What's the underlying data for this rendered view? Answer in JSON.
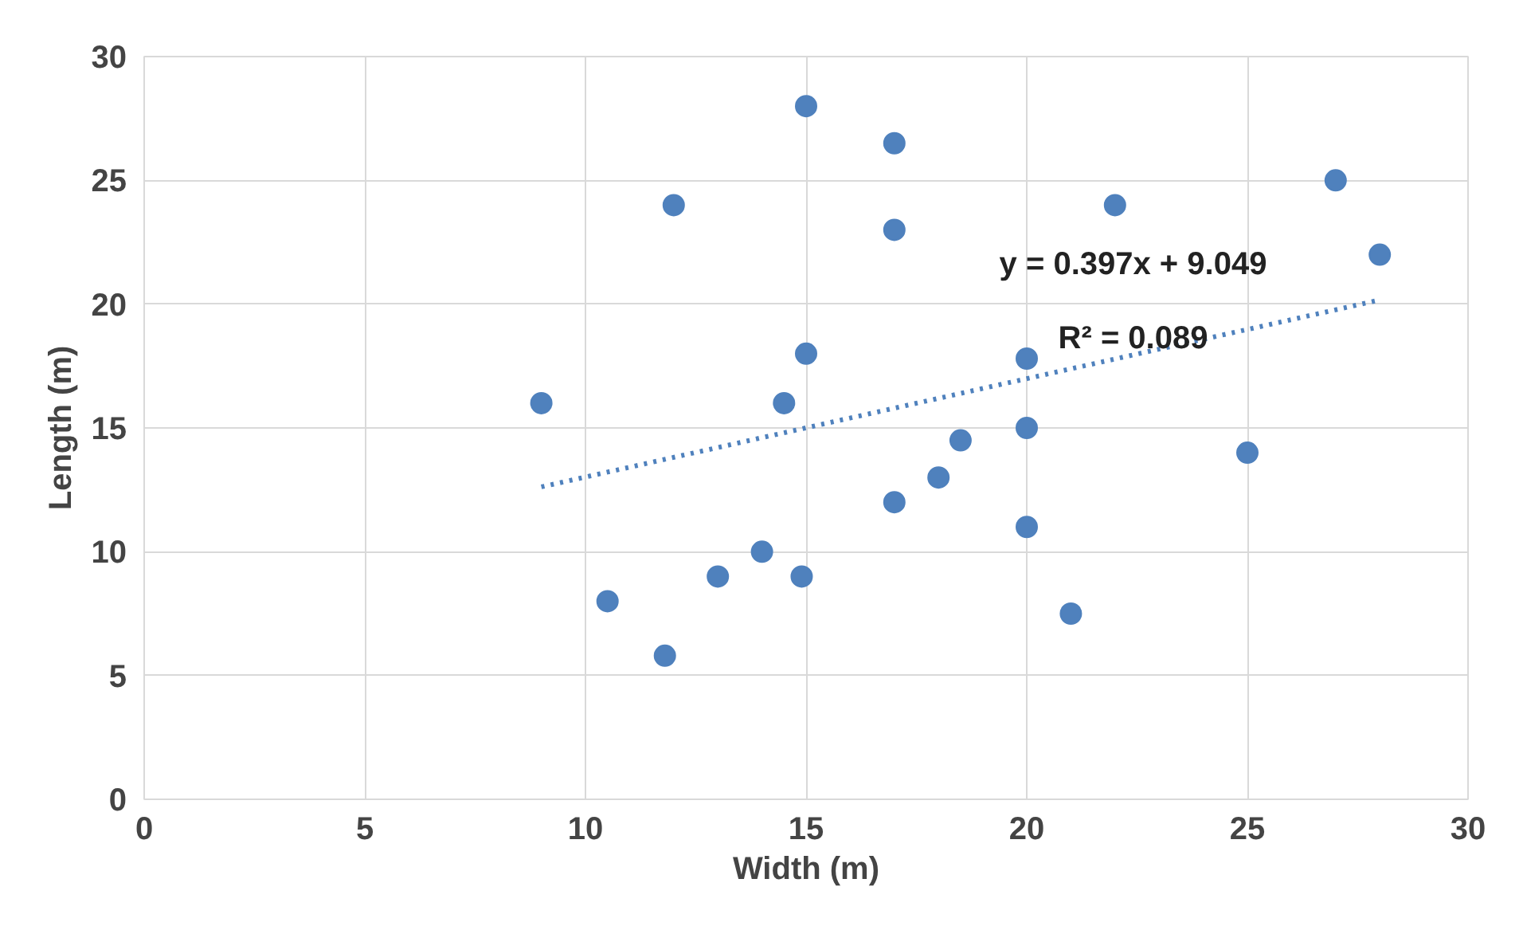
{
  "chart_data": {
    "type": "scatter",
    "xlabel": "Width (m)",
    "ylabel": "Length (m)",
    "xlim": [
      0,
      30
    ],
    "ylim": [
      0,
      30
    ],
    "xticks": [
      0,
      5,
      10,
      15,
      20,
      25,
      30
    ],
    "yticks": [
      0,
      5,
      10,
      15,
      20,
      25,
      30
    ],
    "grid": true,
    "series": [
      {
        "color": "#4f81bd",
        "marker": "circle",
        "x": [
          9,
          12,
          10.5,
          11.8,
          13,
          14,
          14.5,
          14.9,
          15,
          15,
          17,
          17,
          17,
          18,
          18.5,
          20,
          20,
          20,
          21,
          22,
          25,
          27,
          28
        ],
        "values": [
          16,
          24,
          8,
          5.8,
          9,
          10,
          16,
          9,
          18,
          28,
          26.5,
          23,
          12,
          13,
          14.5,
          17.8,
          15,
          11,
          7.5,
          24,
          14,
          25,
          22
        ]
      },
      {
        "type": "line",
        "color": "#4f81bd",
        "marker": "none",
        "line_style": "dotted",
        "x": [
          9,
          28
        ],
        "values": [
          12.62,
          20.17
        ]
      }
    ],
    "annotations": [
      "y = 0.397x + 9.049",
      "R² = 0.089"
    ]
  }
}
